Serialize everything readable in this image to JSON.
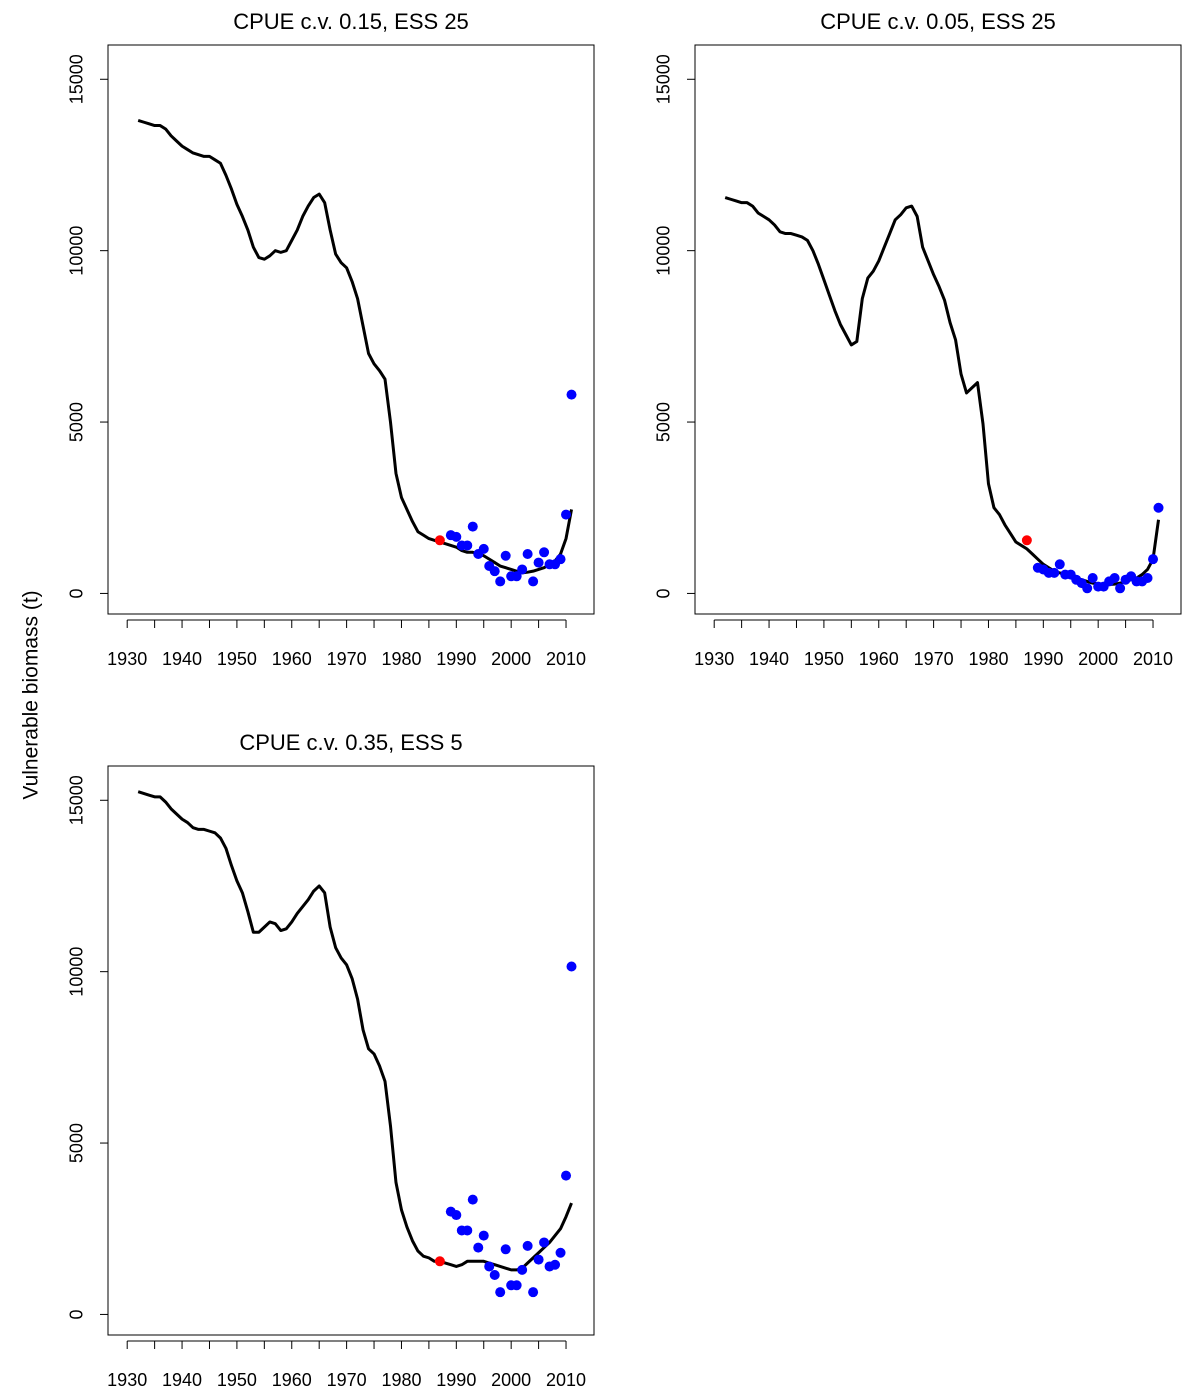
{
  "ylabel": "Vulnerable biomass (t)",
  "chart_data": [
    {
      "type": "line",
      "title": "CPUE c.v. 0.15, ESS 25",
      "xlim": [
        1926.5,
        2015.1
      ],
      "ylim": [
        -600,
        16000
      ],
      "xticks": [
        1930,
        1940,
        1950,
        1960,
        1970,
        1980,
        1990,
        2000,
        2010
      ],
      "xminorticks": [
        1935,
        1945,
        1955,
        1965,
        1975,
        1985,
        1995,
        2005
      ],
      "yticks": [
        0,
        5000,
        10000,
        15000
      ],
      "series": [
        {
          "type": "line",
          "color": "#000000",
          "x": [
            1932,
            1933,
            1934,
            1935,
            1936,
            1937,
            1938,
            1939,
            1940,
            1941,
            1942,
            1943,
            1944,
            1945,
            1946,
            1947,
            1948,
            1949,
            1950,
            1951,
            1952,
            1953,
            1954,
            1955,
            1956,
            1957,
            1958,
            1959,
            1960,
            1961,
            1962,
            1963,
            1964,
            1965,
            1966,
            1967,
            1968,
            1969,
            1970,
            1971,
            1972,
            1973,
            1974,
            1975,
            1976,
            1977,
            1978,
            1979,
            1980,
            1981,
            1982,
            1983,
            1984,
            1985,
            1986,
            1987,
            1988,
            1989,
            1990,
            1991,
            1992,
            1993,
            1994,
            1995,
            1996,
            1997,
            1998,
            1999,
            2000,
            2001,
            2002,
            2003,
            2004,
            2005,
            2006,
            2007,
            2008,
            2009,
            2010,
            2011
          ],
          "values": [
            13800,
            13750,
            13700,
            13650,
            13650,
            13550,
            13350,
            13200,
            13050,
            12950,
            12850,
            12800,
            12750,
            12750,
            12650,
            12550,
            12200,
            11800,
            11350,
            11000,
            10600,
            10100,
            9800,
            9750,
            9850,
            10000,
            9950,
            10000,
            10300,
            10600,
            11000,
            11300,
            11550,
            11650,
            11400,
            10600,
            9900,
            9650,
            9500,
            9100,
            8600,
            7800,
            7000,
            6700,
            6500,
            6250,
            5000,
            3500,
            2800,
            2450,
            2100,
            1800,
            1700,
            1600,
            1550,
            1500,
            1450,
            1400,
            1350,
            1250,
            1200,
            1200,
            1150,
            1100,
            1000,
            900,
            800,
            750,
            700,
            650,
            600,
            620,
            650,
            700,
            750,
            850,
            950,
            1150,
            1600,
            2450
          ]
        },
        {
          "type": "scatter",
          "color": "#0000ff",
          "x": [
            1989,
            1990,
            1991,
            1992,
            1993,
            1994,
            1995,
            1996,
            1997,
            1998,
            1999,
            2000,
            2001,
            2002,
            2003,
            2004,
            2005,
            2006,
            2007,
            2008,
            2009,
            2010,
            2011
          ],
          "values": [
            1700,
            1650,
            1400,
            1400,
            1950,
            1150,
            1300,
            800,
            650,
            350,
            1100,
            500,
            500,
            700,
            1150,
            350,
            900,
            1200,
            850,
            850,
            1000,
            2300,
            5800
          ]
        },
        {
          "type": "scatter",
          "color": "#ff0000",
          "x": [
            1987
          ],
          "values": [
            1550
          ]
        }
      ]
    },
    {
      "type": "line",
      "title": "CPUE c.v. 0.05, ESS 25",
      "xlim": [
        1926.5,
        2015.1
      ],
      "ylim": [
        -600,
        16000
      ],
      "xticks": [
        1930,
        1940,
        1950,
        1960,
        1970,
        1980,
        1990,
        2000,
        2010
      ],
      "xminorticks": [
        1935,
        1945,
        1955,
        1965,
        1975,
        1985,
        1995,
        2005
      ],
      "yticks": [
        0,
        5000,
        10000,
        15000
      ],
      "series": [
        {
          "type": "line",
          "color": "#000000",
          "x": [
            1932,
            1933,
            1934,
            1935,
            1936,
            1937,
            1938,
            1939,
            1940,
            1941,
            1942,
            1943,
            1944,
            1945,
            1946,
            1947,
            1948,
            1949,
            1950,
            1951,
            1952,
            1953,
            1954,
            1955,
            1956,
            1957,
            1958,
            1959,
            1960,
            1961,
            1962,
            1963,
            1964,
            1965,
            1966,
            1967,
            1968,
            1969,
            1970,
            1971,
            1972,
            1973,
            1974,
            1975,
            1976,
            1977,
            1978,
            1979,
            1980,
            1981,
            1982,
            1983,
            1984,
            1985,
            1986,
            1987,
            1988,
            1989,
            1990,
            1991,
            1992,
            1993,
            1994,
            1995,
            1996,
            1997,
            1998,
            1999,
            2000,
            2001,
            2002,
            2003,
            2004,
            2005,
            2006,
            2007,
            2008,
            2009,
            2010,
            2011
          ],
          "values": [
            11550,
            11500,
            11450,
            11400,
            11400,
            11300,
            11100,
            11000,
            10900,
            10750,
            10550,
            10500,
            10500,
            10450,
            10400,
            10300,
            10000,
            9600,
            9150,
            8700,
            8250,
            7850,
            7550,
            7250,
            7350,
            8600,
            9200,
            9400,
            9700,
            10100,
            10500,
            10900,
            11050,
            11250,
            11300,
            11000,
            10100,
            9700,
            9300,
            8950,
            8550,
            7900,
            7400,
            6400,
            5850,
            6000,
            6150,
            4950,
            3200,
            2500,
            2300,
            2000,
            1750,
            1500,
            1400,
            1300,
            1150,
            1000,
            850,
            750,
            650,
            600,
            550,
            500,
            450,
            400,
            350,
            300,
            280,
            270,
            260,
            270,
            300,
            350,
            400,
            450,
            550,
            700,
            1000,
            2150
          ]
        },
        {
          "type": "scatter",
          "color": "#0000ff",
          "x": [
            1989,
            1990,
            1991,
            1992,
            1993,
            1994,
            1995,
            1996,
            1997,
            1998,
            1999,
            2000,
            2001,
            2002,
            2003,
            2004,
            2005,
            2006,
            2007,
            2008,
            2009,
            2010,
            2011
          ],
          "values": [
            750,
            700,
            600,
            600,
            850,
            550,
            550,
            400,
            300,
            150,
            450,
            200,
            200,
            350,
            450,
            150,
            400,
            500,
            350,
            350,
            450,
            1000,
            2500
          ]
        },
        {
          "type": "scatter",
          "color": "#ff0000",
          "x": [
            1987
          ],
          "values": [
            1550
          ]
        }
      ]
    },
    {
      "type": "line",
      "title": "CPUE c.v. 0.35, ESS 5",
      "xlim": [
        1926.5,
        2015.1
      ],
      "ylim": [
        -600,
        16000
      ],
      "xticks": [
        1930,
        1940,
        1950,
        1960,
        1970,
        1980,
        1990,
        2000,
        2010
      ],
      "xminorticks": [
        1935,
        1945,
        1955,
        1965,
        1975,
        1985,
        1995,
        2005
      ],
      "yticks": [
        0,
        5000,
        10000,
        15000
      ],
      "series": [
        {
          "type": "line",
          "color": "#000000",
          "x": [
            1932,
            1933,
            1934,
            1935,
            1936,
            1937,
            1938,
            1939,
            1940,
            1941,
            1942,
            1943,
            1944,
            1945,
            1946,
            1947,
            1948,
            1949,
            1950,
            1951,
            1952,
            1953,
            1954,
            1955,
            1956,
            1957,
            1958,
            1959,
            1960,
            1961,
            1962,
            1963,
            1964,
            1965,
            1966,
            1967,
            1968,
            1969,
            1970,
            1971,
            1972,
            1973,
            1974,
            1975,
            1976,
            1977,
            1978,
            1979,
            1980,
            1981,
            1982,
            1983,
            1984,
            1985,
            1986,
            1987,
            1988,
            1989,
            1990,
            1991,
            1992,
            1993,
            1994,
            1995,
            1996,
            1997,
            1998,
            1999,
            2000,
            2001,
            2002,
            2003,
            2004,
            2005,
            2006,
            2007,
            2008,
            2009,
            2010,
            2011
          ],
          "values": [
            15250,
            15200,
            15150,
            15100,
            15100,
            14950,
            14750,
            14600,
            14450,
            14350,
            14200,
            14150,
            14150,
            14100,
            14050,
            13900,
            13600,
            13100,
            12650,
            12300,
            11750,
            11150,
            11150,
            11300,
            11450,
            11400,
            11200,
            11250,
            11450,
            11700,
            11900,
            12100,
            12350,
            12500,
            12300,
            11300,
            10700,
            10400,
            10200,
            9800,
            9200,
            8300,
            7750,
            7600,
            7250,
            6800,
            5500,
            3850,
            3050,
            2550,
            2150,
            1850,
            1700,
            1650,
            1550,
            1550,
            1500,
            1450,
            1400,
            1450,
            1550,
            1550,
            1550,
            1550,
            1500,
            1450,
            1400,
            1350,
            1300,
            1300,
            1350,
            1500,
            1650,
            1800,
            1950,
            2100,
            2300,
            2500,
            2850,
            3250
          ]
        },
        {
          "type": "scatter",
          "color": "#0000ff",
          "x": [
            1989,
            1990,
            1991,
            1992,
            1993,
            1994,
            1995,
            1996,
            1997,
            1998,
            1999,
            2000,
            2001,
            2002,
            2003,
            2004,
            2005,
            2006,
            2007,
            2008,
            2009,
            2010,
            2011
          ],
          "values": [
            3000,
            2900,
            2450,
            2450,
            3350,
            1950,
            2300,
            1400,
            1150,
            650,
            1900,
            850,
            850,
            1300,
            2000,
            650,
            1600,
            2100,
            1400,
            1450,
            1800,
            4050,
            10150
          ]
        },
        {
          "type": "scatter",
          "color": "#ff0000",
          "x": [
            1987
          ],
          "values": [
            1550
          ]
        }
      ]
    }
  ]
}
